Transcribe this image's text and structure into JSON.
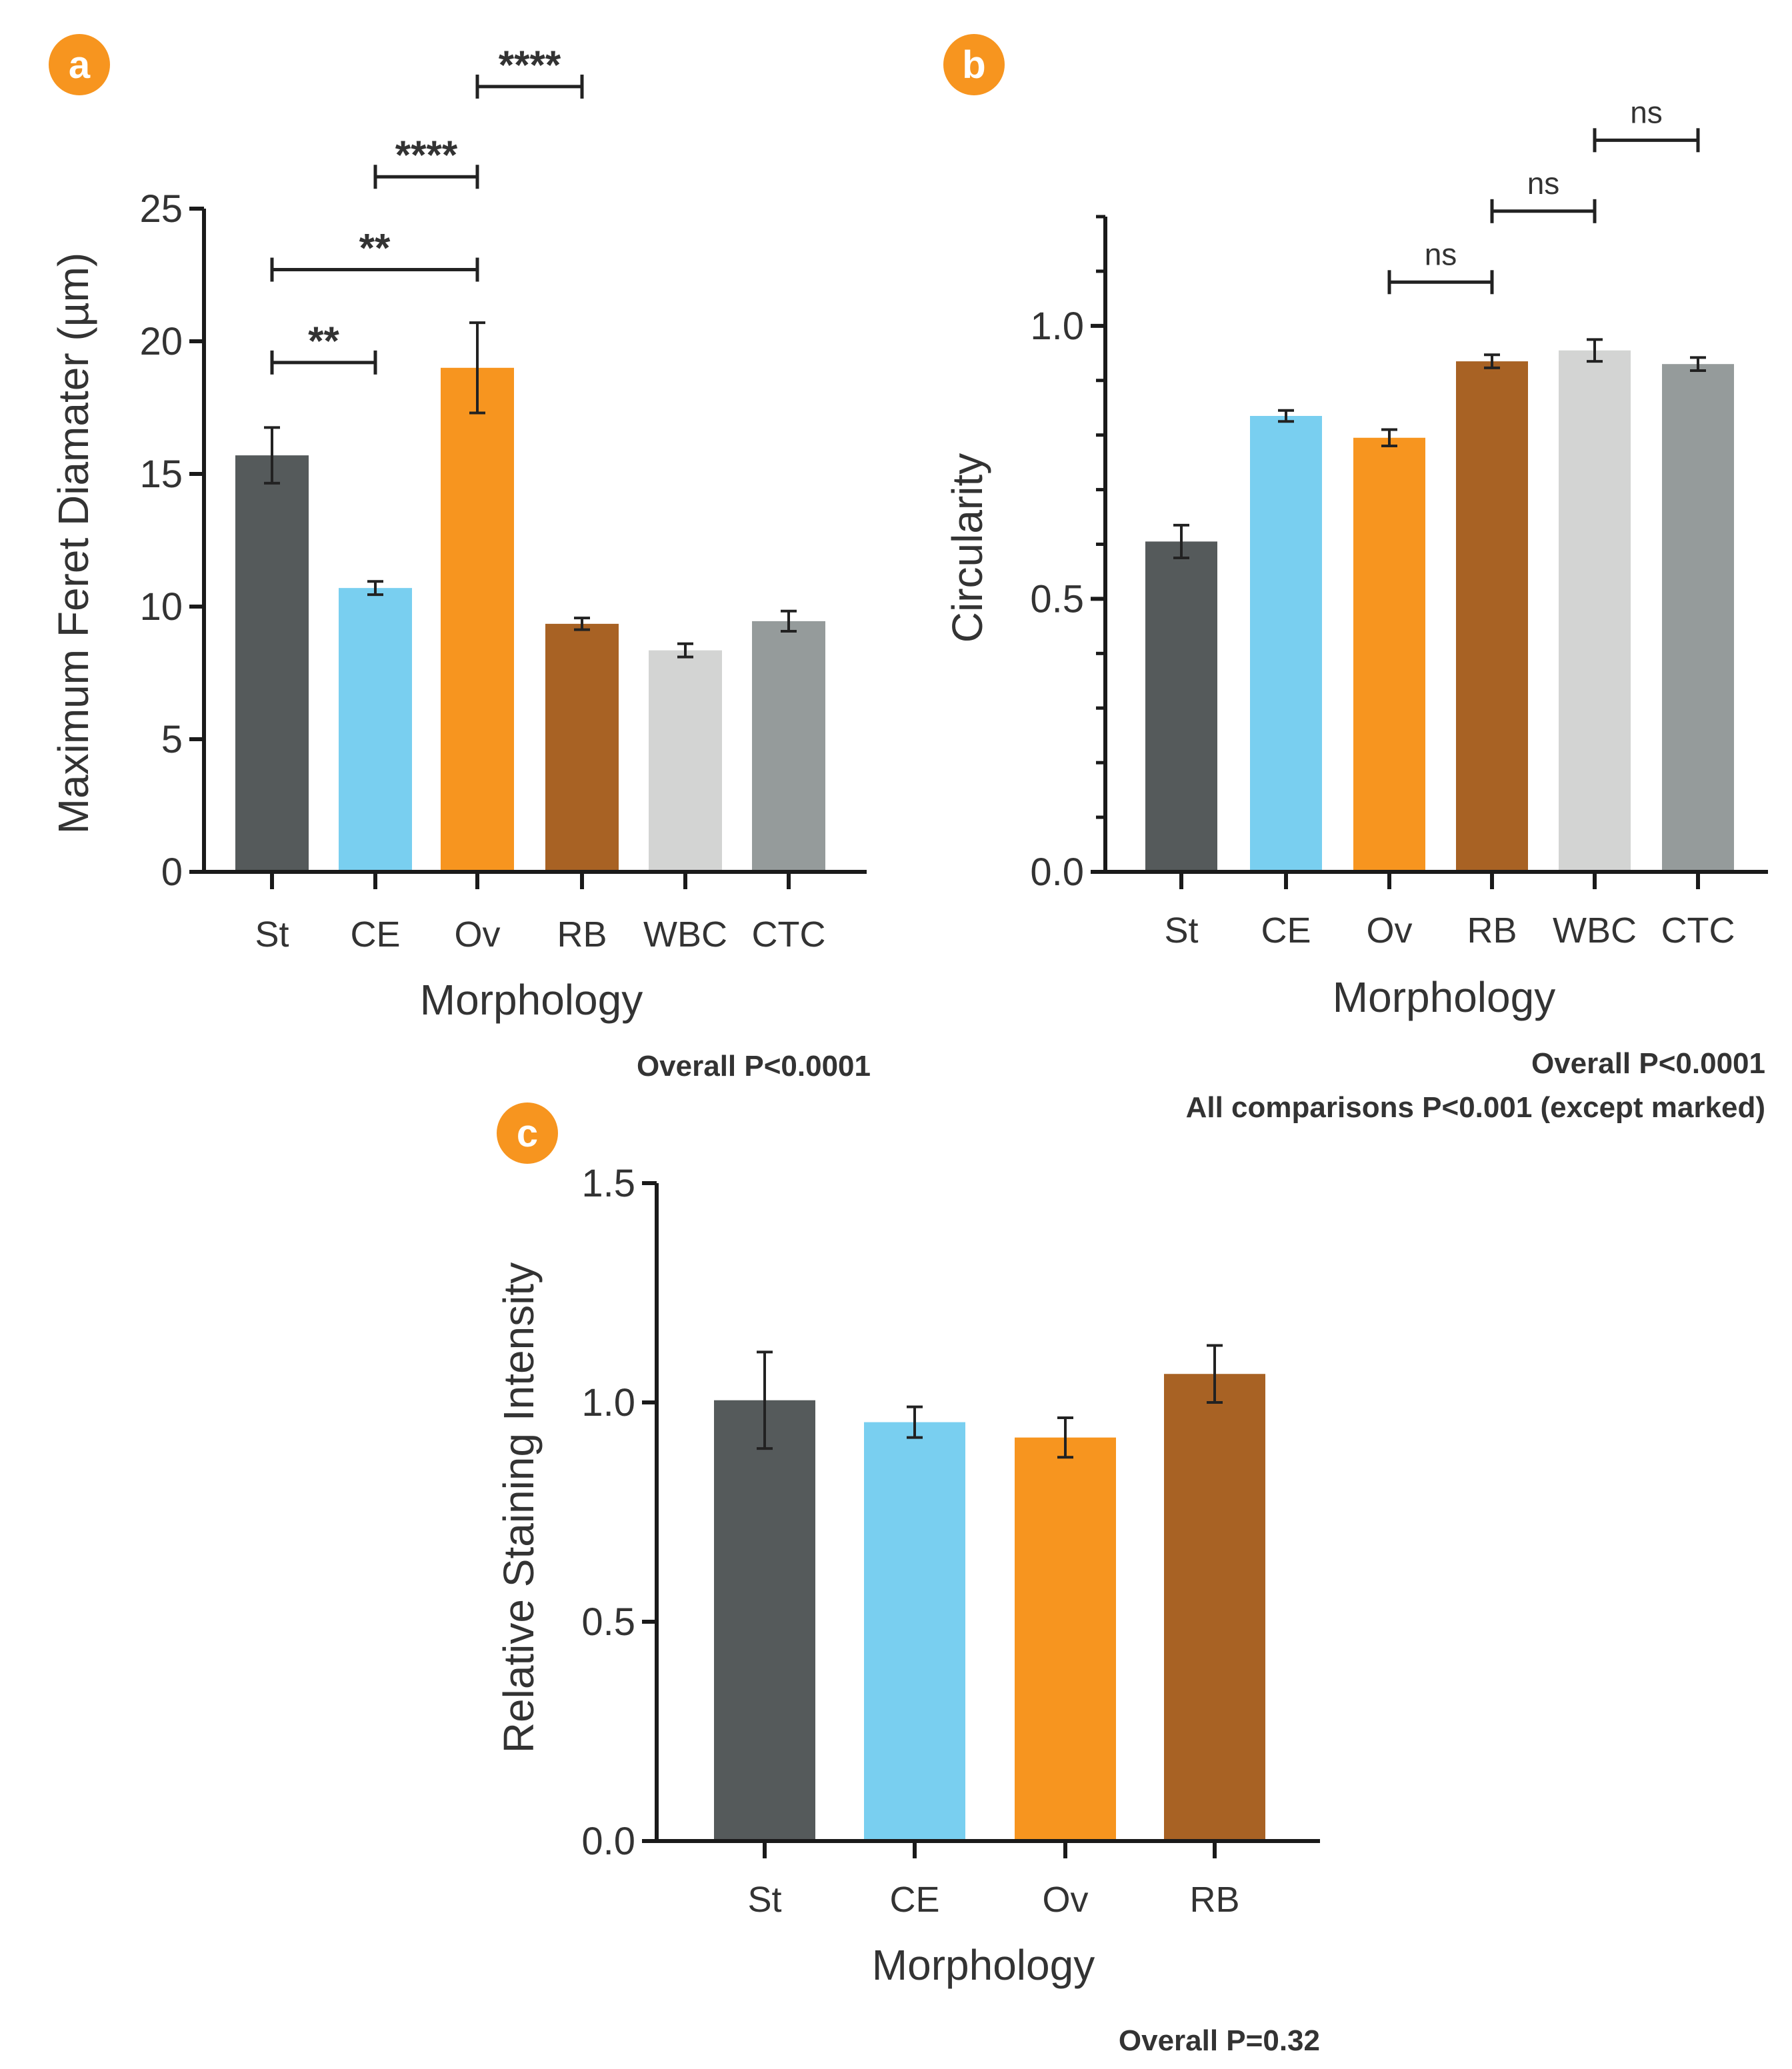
{
  "colors": {
    "St": "#555a5b",
    "CE": "#79cff0",
    "Ov": "#f7951f",
    "RB": "#a86224",
    "WBC": "#d3d4d3",
    "CTC": "#959b9b",
    "badge": "#f7951f",
    "axis": "#1a1a1a"
  },
  "chart_data": [
    {
      "panel": "a",
      "type": "bar",
      "categories": [
        "St",
        "CE",
        "Ov",
        "RB",
        "WBC",
        "CTC"
      ],
      "values": [
        15.7,
        10.7,
        19.0,
        9.35,
        8.35,
        9.45
      ],
      "errors": [
        1.05,
        0.25,
        1.7,
        0.22,
        0.25,
        0.38
      ],
      "xlabel": "Morphology",
      "ylabel": "Maximum Feret Diamater (µm)",
      "ylim": [
        0,
        25
      ],
      "yticks": [
        "0",
        "5",
        "10",
        "15",
        "20",
        "25"
      ],
      "yticks_values": [
        0,
        5,
        10,
        15,
        20,
        25
      ],
      "minor_ticks": false,
      "comparisons": [
        {
          "from": 0,
          "to": 1,
          "label": "**",
          "y": 19.2
        },
        {
          "from": 0,
          "to": 2,
          "label": "**",
          "y": 22.7
        },
        {
          "from": 1,
          "to": 2,
          "label": "****",
          "y": 26.2
        },
        {
          "from": 2,
          "to": 3,
          "label": "****",
          "y": 29.6
        }
      ],
      "notes": [
        "Overall P<0.0001"
      ]
    },
    {
      "panel": "b",
      "type": "bar",
      "categories": [
        "St",
        "CE",
        "Ov",
        "RB",
        "WBC",
        "CTC"
      ],
      "values": [
        0.605,
        0.835,
        0.795,
        0.935,
        0.955,
        0.93
      ],
      "errors": [
        0.03,
        0.01,
        0.015,
        0.012,
        0.02,
        0.012
      ],
      "xlabel": "Morphology",
      "ylabel": "Circularity",
      "ylim": [
        0,
        1.2
      ],
      "yticks": [
        "0.0",
        "0.5",
        "1.0"
      ],
      "yticks_values": [
        0,
        0.5,
        1.0
      ],
      "minor_ticks": true,
      "comparisons": [
        {
          "from": 2,
          "to": 3,
          "label": "ns",
          "y": 1.08
        },
        {
          "from": 3,
          "to": 4,
          "label": "ns",
          "y": 1.21
        },
        {
          "from": 4,
          "to": 5,
          "label": "ns",
          "y": 1.34
        }
      ],
      "notes": [
        "Overall P<0.0001",
        "All comparisons P<0.001 (except marked)"
      ]
    },
    {
      "panel": "c",
      "type": "bar",
      "categories": [
        "St",
        "CE",
        "Ov",
        "RB"
      ],
      "values": [
        1.005,
        0.955,
        0.92,
        1.065
      ],
      "errors": [
        0.11,
        0.035,
        0.045,
        0.065
      ],
      "xlabel": "Morphology",
      "ylabel": "Relative Staining Intensity",
      "ylim": [
        0,
        1.5
      ],
      "yticks": [
        "0.0",
        "0.5",
        "1.0",
        "1.5"
      ],
      "yticks_values": [
        0,
        0.5,
        1.0,
        1.5
      ],
      "minor_ticks": false,
      "comparisons": [],
      "notes": [
        "Overall P=0.32"
      ]
    }
  ]
}
